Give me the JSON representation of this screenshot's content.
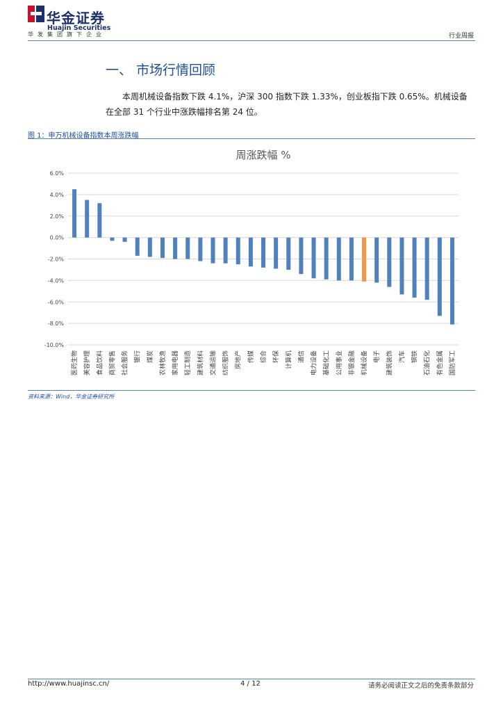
{
  "header": {
    "brand_cn": "华金证券",
    "brand_en": "Huajin Securities",
    "group_line": "华发集团旗下企业",
    "report_type": "行业周报"
  },
  "section": {
    "title": "一、 市场行情回顾",
    "paragraph": "本周机械设备指数下跌 4.1%，沪深 300 指数下跌 1.33%，创业板指下跌 0.65%。机械设备在全部 31 个行业中涨跌幅排名第 24 位。"
  },
  "figure": {
    "caption": "图 1：申万机械设备指数本周涨跌幅",
    "source": "资料来源：Wind，华金证券研究所"
  },
  "colors": {
    "accent": "#1f4e9a",
    "bar": "#4f81bd",
    "highlight": "#f79646"
  },
  "chart_data": {
    "type": "bar",
    "title": "周涨跌幅 %",
    "xlabel": "",
    "ylabel": "",
    "ylim": [
      -10,
      6
    ],
    "yticks": [
      6,
      4,
      2,
      0,
      -2,
      -4,
      -6,
      -8,
      -10
    ],
    "ytick_labels": [
      "6.0%",
      "4.0%",
      "2.0%",
      "0.0%",
      "-2.0%",
      "-4.0%",
      "-6.0%",
      "-8.0%",
      "-10.0%"
    ],
    "grid": true,
    "highlight_category": "机械设备",
    "categories": [
      "医药生物",
      "美容护理",
      "食品饮料",
      "商贸零售",
      "社会服务",
      "银行",
      "煤炭",
      "农林牧渔",
      "家用电器",
      "轻工制造",
      "建筑材料",
      "交通运输",
      "纺织服饰",
      "房地产",
      "传媒",
      "综合",
      "环保",
      "计算机",
      "通信",
      "电力设备",
      "基础化工",
      "公用事业",
      "非银金融",
      "机械设备",
      "电子",
      "建筑装饰",
      "汽车",
      "钢铁",
      "石油石化",
      "有色金属",
      "国防军工"
    ],
    "values": [
      4.5,
      3.5,
      3.2,
      -0.3,
      -0.4,
      -1.7,
      -1.8,
      -1.9,
      -2.0,
      -2.0,
      -2.2,
      -2.4,
      -2.4,
      -2.5,
      -2.7,
      -2.8,
      -2.9,
      -3.0,
      -3.4,
      -3.8,
      -3.9,
      -4.0,
      -4.0,
      -4.1,
      -4.2,
      -4.6,
      -5.3,
      -5.6,
      -5.8,
      -7.3,
      -8.1
    ]
  },
  "footer": {
    "url": "http://www.huajinsc.cn/",
    "page": "4 / 12",
    "disclaimer": "请务必阅读正文之后的免责条款部分"
  }
}
